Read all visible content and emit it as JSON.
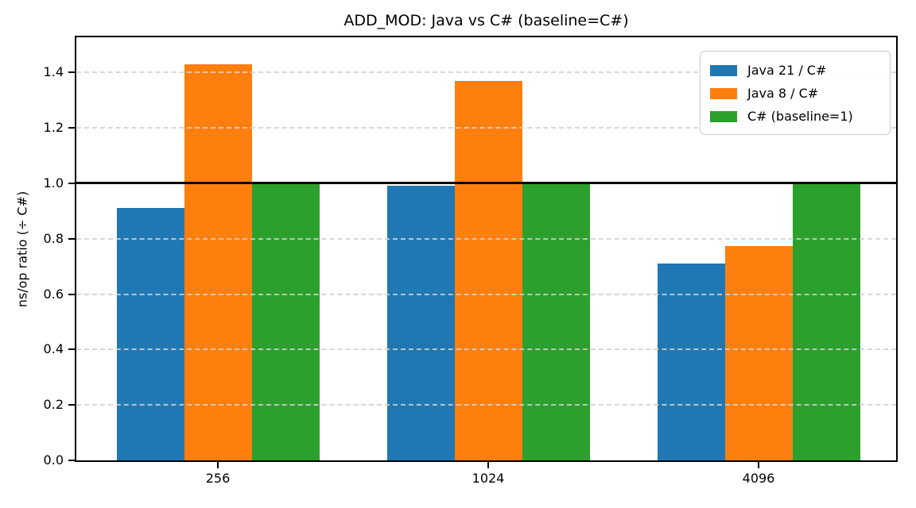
{
  "chart_data": {
    "type": "bar",
    "title": "ADD_MOD: Java vs C# (baseline=C#)",
    "xlabel": "",
    "ylabel": "ns/op ratio (÷ C#)",
    "categories": [
      "256",
      "1024",
      "4096"
    ],
    "series": [
      {
        "name": "Java 21 / C#",
        "color": "#1f77b4",
        "values": [
          0.91,
          0.99,
          0.71
        ]
      },
      {
        "name": "Java 8 / C#",
        "color": "#ff7f0e",
        "values": [
          1.43,
          1.37,
          0.775
        ]
      },
      {
        "name": "C# (baseline=1)",
        "color": "#2ca02c",
        "values": [
          1.0,
          1.0,
          1.0
        ]
      }
    ],
    "ylim": [
      0,
      1.527
    ],
    "yticks": [
      "0.0",
      "0.2",
      "0.4",
      "0.6",
      "0.8",
      "1.0",
      "1.2",
      "1.4"
    ],
    "baseline_y": 1.0,
    "grid": {
      "axis": "y",
      "style": "dashed",
      "color": "#d0d0d0"
    },
    "legend": {
      "position": "upper right"
    }
  }
}
